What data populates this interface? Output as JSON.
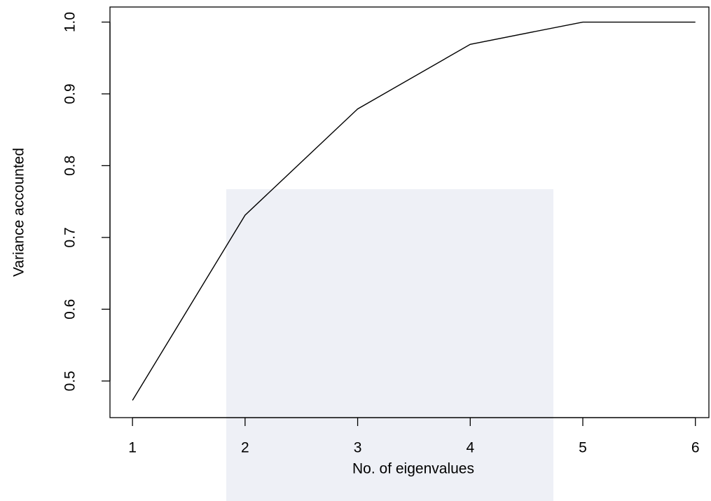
{
  "chart_data": {
    "type": "line",
    "x_label": "No. of eigenvalues",
    "y_label": "Variance accounted",
    "x": [
      1,
      2,
      3,
      4,
      5,
      6
    ],
    "series": [
      {
        "color": "#000000",
        "values": [
          0.473,
          0.731,
          0.879,
          0.969,
          1.0,
          1.0
        ]
      }
    ],
    "xlim": [
      0.8,
      6.12
    ],
    "xticks": [
      1,
      2,
      3,
      4,
      5,
      6
    ],
    "ylim": [
      0.449,
      1.021
    ],
    "yticks": [
      0.5,
      0.6,
      0.7,
      0.8,
      0.9,
      {
        "value": 1.0,
        "label": "1.0"
      }
    ]
  }
}
